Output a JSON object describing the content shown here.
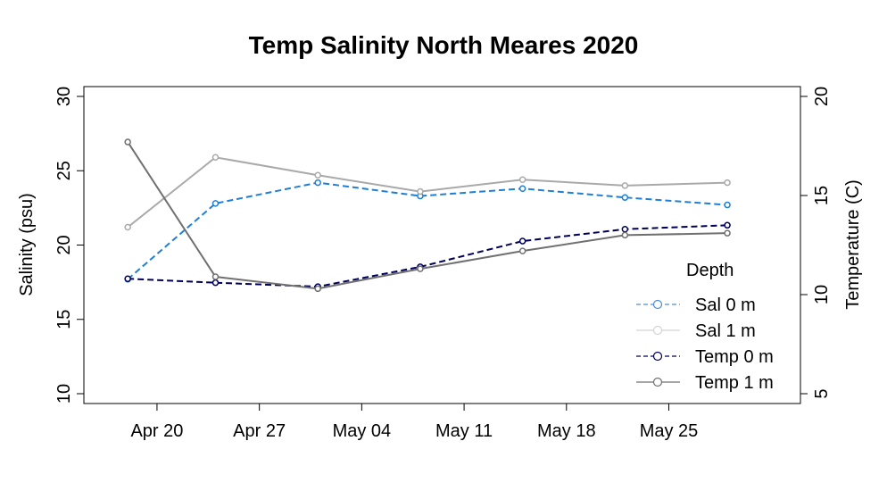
{
  "chart_data": {
    "type": "line",
    "title": "Temp Salinity North Meares 2020",
    "ylabel_left": "Salinity (psu)",
    "ylabel_right": "Temperature (C)",
    "ylim_left": [
      10,
      30
    ],
    "ylim_right": [
      5,
      20
    ],
    "yticks_left": [
      10,
      15,
      20,
      25,
      30
    ],
    "yticks_right": [
      5,
      10,
      15,
      20
    ],
    "xlim": [
      "2020-04-15",
      "2020-06-03"
    ],
    "xticks": [
      {
        "date": "2020-04-20",
        "label": "Apr 20"
      },
      {
        "date": "2020-04-27",
        "label": "Apr 27"
      },
      {
        "date": "2020-05-04",
        "label": "May 04"
      },
      {
        "date": "2020-05-11",
        "label": "May 11"
      },
      {
        "date": "2020-05-18",
        "label": "May 18"
      },
      {
        "date": "2020-05-25",
        "label": "May 25"
      }
    ],
    "legend_title": "Depth",
    "legend_position": "bottom-right",
    "grid": false,
    "series": [
      {
        "name": "Sal 0 m",
        "axis": "left",
        "color": "#1f7fd4",
        "dash": true,
        "x": [
          "2020-04-18",
          "2020-04-24",
          "2020-05-01",
          "2020-05-08",
          "2020-05-15",
          "2020-05-22",
          "2020-05-29"
        ],
        "values": [
          17.7,
          22.8,
          24.2,
          23.3,
          23.8,
          23.2,
          22.7
        ]
      },
      {
        "name": "Sal 1 m",
        "axis": "left",
        "color": "#a9a9a9",
        "dash": false,
        "x": [
          "2020-04-18",
          "2020-04-24",
          "2020-05-01",
          "2020-05-08",
          "2020-05-15",
          "2020-05-22",
          "2020-05-29"
        ],
        "values": [
          21.2,
          25.9,
          24.7,
          23.6,
          24.4,
          24.0,
          24.2
        ]
      },
      {
        "name": "Temp 0 m",
        "axis": "right",
        "color": "#00005a",
        "dash": true,
        "x": [
          "2020-04-18",
          "2020-04-24",
          "2020-05-01",
          "2020-05-08",
          "2020-05-15",
          "2020-05-22",
          "2020-05-29"
        ],
        "values": [
          10.8,
          10.6,
          10.4,
          11.4,
          12.7,
          13.3,
          13.5
        ]
      },
      {
        "name": "Temp 1 m",
        "axis": "right",
        "color": "#707070",
        "dash": false,
        "x": [
          "2020-04-18",
          "2020-04-24",
          "2020-05-01",
          "2020-05-08",
          "2020-05-15",
          "2020-05-22",
          "2020-05-29"
        ],
        "values": [
          17.7,
          10.9,
          10.3,
          11.3,
          12.2,
          13.0,
          13.1
        ]
      }
    ]
  }
}
